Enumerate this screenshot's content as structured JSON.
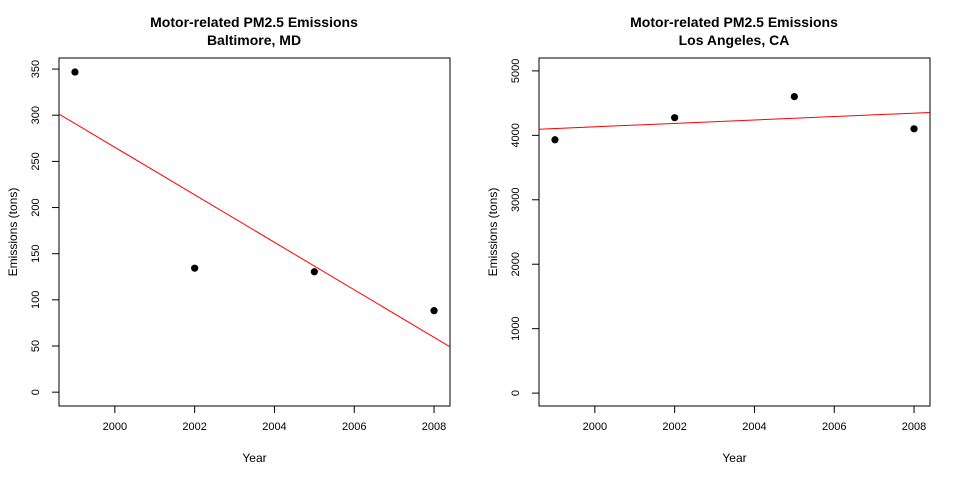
{
  "chart_data": [
    {
      "type": "scatter",
      "title": "Motor-related PM2.5 Emissions",
      "subtitle": "Baltimore, MD",
      "xlabel": "Year",
      "ylabel": "Emissions (tons)",
      "xlim": [
        1998.6,
        2008.4
      ],
      "ylim": [
        -15,
        362
      ],
      "xticks": [
        2000,
        2002,
        2004,
        2006,
        2008
      ],
      "yticks": [
        0,
        50,
        100,
        150,
        200,
        250,
        300,
        350
      ],
      "grid": false,
      "point_color": "#000000",
      "series": [
        {
          "x": [
            1999,
            2002,
            2005,
            2008
          ],
          "y": [
            346.8,
            134.3,
            130.4,
            88.3
          ]
        }
      ],
      "trend_line": {
        "color": "#ff0000",
        "x": [
          1998.6,
          2008.4
        ],
        "y": [
          301.3,
          49.1
        ]
      }
    },
    {
      "type": "scatter",
      "title": "Motor-related PM2.5 Emissions",
      "subtitle": "Los Angeles, CA",
      "xlabel": "Year",
      "ylabel": "Emissions (tons)",
      "xlim": [
        1998.6,
        2008.4
      ],
      "ylim": [
        -200,
        5200
      ],
      "xticks": [
        2000,
        2002,
        2004,
        2006,
        2008
      ],
      "yticks": [
        0,
        1000,
        2000,
        3000,
        4000,
        5000
      ],
      "grid": false,
      "point_color": "#000000",
      "series": [
        {
          "x": [
            1999,
            2002,
            2005,
            2008
          ],
          "y": [
            3931,
            4274,
            4601,
            4101
          ]
        }
      ],
      "trend_line": {
        "color": "#ff0000",
        "x": [
          1998.6,
          2008.4
        ],
        "y": [
          4095,
          4355
        ]
      }
    }
  ]
}
